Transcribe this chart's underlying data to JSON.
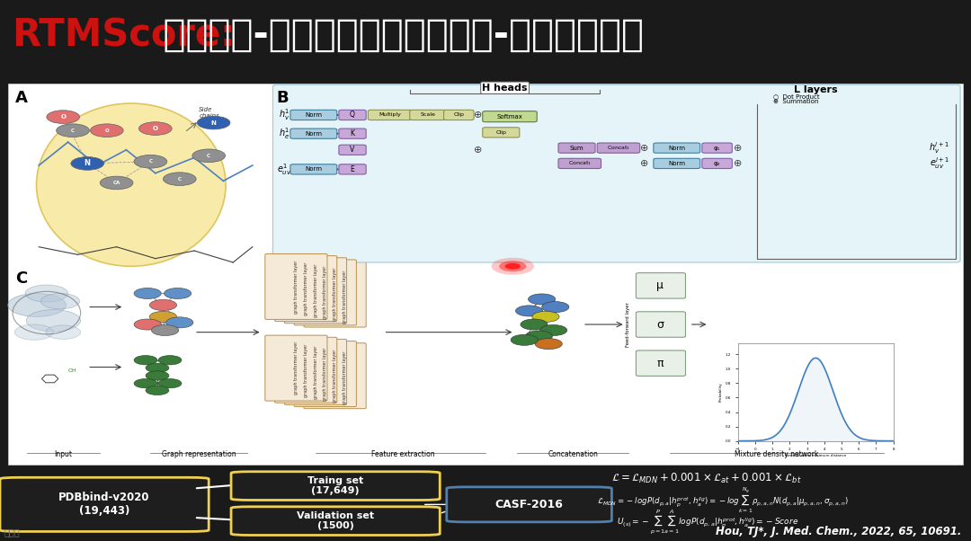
{
  "title_red": "RTMScore:",
  "title_black": " 基于残基-原子距离统计势的蛋白-配体打分函数",
  "header_bg": "#1a1a1a",
  "divider_color": "#c8a030",
  "content_bg": "#f0f0f0",
  "panel_bg": "#ffffff",
  "panel_b_bg": "#e8f5f8",
  "panel_b_border": "#b8d8e8",
  "bottom_bg": "#1e1e1e",
  "box_yellow": "#f0d050",
  "box_blue": "#5080b0",
  "citation": "Hou, TJ*, J. Med. Chem., 2022, 65, 10691.",
  "watermark": "侯廷军",
  "pdb_label": "PDBbind-v2020\n(19,443)",
  "train_label": "Traing set\n(17,649)",
  "val_label": "Validation set\n(1500)",
  "casf_label": "CASF-2016",
  "eq1": "$\\mathcal{L} = \\mathcal{L}_{MDN} + 0.001 \\times \\mathcal{L}_{at} + 0.001 \\times \\mathcal{L}_{bt}$",
  "eq2": "$\\mathcal{L}_{MDN} = -logP(d_{p,a}|h_p^{prot}, h_a^{lig}) = -log\\sum_{k=1}^{N_g} \\rho_{p,a,n} N(d_{p,a}|\\mu_{p,a,n}, \\sigma_{p,a,n})$",
  "eq3": "$U_{(s)} = -\\sum_{p=1}^{P}\\sum_{a=1}^{A} logP(d_{p,a}|h_p^{prot}, h_a^{lig}) = -Score$",
  "section_labels": [
    "Input",
    "Graph representation",
    "Feature extraction",
    "Concatenation",
    "Mixture density network"
  ],
  "panel_a_label": "A",
  "panel_b_label": "B",
  "panel_c_label": "C"
}
